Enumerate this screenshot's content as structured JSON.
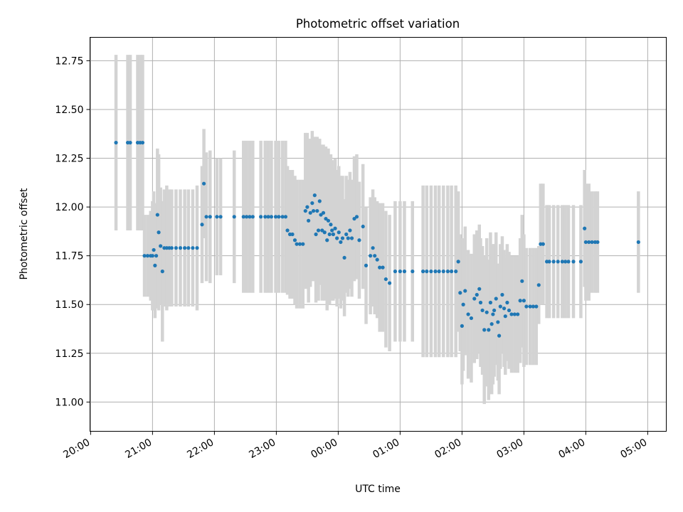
{
  "chart_data": {
    "type": "scatter",
    "title": "Photometric offset variation",
    "xlabel": "UTC time",
    "ylabel": "Photometric offset",
    "x_unit": "hours since 20:00 UTC",
    "xlim": [
      -0.01,
      9.3
    ],
    "ylim": [
      10.85,
      12.87
    ],
    "grid": true,
    "x_ticks": [
      {
        "value": 0,
        "label": "20:00"
      },
      {
        "value": 1,
        "label": "21:00"
      },
      {
        "value": 2,
        "label": "22:00"
      },
      {
        "value": 3,
        "label": "23:00"
      },
      {
        "value": 4,
        "label": "00:00"
      },
      {
        "value": 5,
        "label": "01:00"
      },
      {
        "value": 6,
        "label": "02:00"
      },
      {
        "value": 7,
        "label": "03:00"
      },
      {
        "value": 8,
        "label": "04:00"
      },
      {
        "value": 9,
        "label": "05:00"
      }
    ],
    "y_ticks": [
      {
        "value": 11.0,
        "label": "11.00"
      },
      {
        "value": 11.25,
        "label": "11.25"
      },
      {
        "value": 11.5,
        "label": "11.50"
      },
      {
        "value": 11.75,
        "label": "11.75"
      },
      {
        "value": 12.0,
        "label": "12.00"
      },
      {
        "value": 12.25,
        "label": "12.25"
      },
      {
        "value": 12.5,
        "label": "12.50"
      },
      {
        "value": 12.75,
        "label": "12.75"
      }
    ],
    "errorbar_color": "#d3d3d3",
    "point_color": "#1f77b4",
    "series": [
      {
        "name": "photometric offset",
        "points": [
          {
            "x": 0.41,
            "y": 12.33,
            "err": 0.45
          },
          {
            "x": 0.6,
            "y": 12.33,
            "err": 0.45
          },
          {
            "x": 0.64,
            "y": 12.33,
            "err": 0.45
          },
          {
            "x": 0.76,
            "y": 12.33,
            "err": 0.45
          },
          {
            "x": 0.8,
            "y": 12.33,
            "err": 0.45
          },
          {
            "x": 0.84,
            "y": 12.33,
            "err": 0.45
          },
          {
            "x": 0.87,
            "y": 11.75,
            "err": 0.21
          },
          {
            "x": 0.92,
            "y": 11.75,
            "err": 0.21
          },
          {
            "x": 0.97,
            "y": 11.75,
            "err": 0.23
          },
          {
            "x": 1.0,
            "y": 11.75,
            "err": 0.28
          },
          {
            "x": 1.02,
            "y": 11.78,
            "err": 0.3
          },
          {
            "x": 1.04,
            "y": 11.7,
            "err": 0.27
          },
          {
            "x": 1.06,
            "y": 11.75,
            "err": 0.27
          },
          {
            "x": 1.08,
            "y": 11.96,
            "err": 0.34
          },
          {
            "x": 1.1,
            "y": 11.87,
            "err": 0.4
          },
          {
            "x": 1.13,
            "y": 11.8,
            "err": 0.3
          },
          {
            "x": 1.16,
            "y": 11.67,
            "err": 0.36
          },
          {
            "x": 1.19,
            "y": 11.79,
            "err": 0.3
          },
          {
            "x": 1.23,
            "y": 11.79,
            "err": 0.32
          },
          {
            "x": 1.27,
            "y": 11.79,
            "err": 0.3
          },
          {
            "x": 1.31,
            "y": 11.79,
            "err": 0.3
          },
          {
            "x": 1.38,
            "y": 11.79,
            "err": 0.3
          },
          {
            "x": 1.45,
            "y": 11.79,
            "err": 0.3
          },
          {
            "x": 1.52,
            "y": 11.79,
            "err": 0.3
          },
          {
            "x": 1.58,
            "y": 11.79,
            "err": 0.3
          },
          {
            "x": 1.65,
            "y": 11.79,
            "err": 0.3
          },
          {
            "x": 1.72,
            "y": 11.79,
            "err": 0.32
          },
          {
            "x": 1.8,
            "y": 11.91,
            "err": 0.3
          },
          {
            "x": 1.83,
            "y": 12.12,
            "err": 0.28
          },
          {
            "x": 1.87,
            "y": 11.95,
            "err": 0.33
          },
          {
            "x": 1.93,
            "y": 11.95,
            "err": 0.34
          },
          {
            "x": 2.04,
            "y": 11.95,
            "err": 0.3
          },
          {
            "x": 2.1,
            "y": 11.95,
            "err": 0.3
          },
          {
            "x": 2.32,
            "y": 11.95,
            "err": 0.34
          },
          {
            "x": 2.47,
            "y": 11.95,
            "err": 0.39
          },
          {
            "x": 2.52,
            "y": 11.95,
            "err": 0.39
          },
          {
            "x": 2.57,
            "y": 11.95,
            "err": 0.39
          },
          {
            "x": 2.62,
            "y": 11.95,
            "err": 0.39
          },
          {
            "x": 2.75,
            "y": 11.95,
            "err": 0.39
          },
          {
            "x": 2.82,
            "y": 11.95,
            "err": 0.39
          },
          {
            "x": 2.87,
            "y": 11.95,
            "err": 0.39
          },
          {
            "x": 2.92,
            "y": 11.95,
            "err": 0.39
          },
          {
            "x": 2.99,
            "y": 11.95,
            "err": 0.39
          },
          {
            "x": 3.04,
            "y": 11.95,
            "err": 0.39
          },
          {
            "x": 3.1,
            "y": 11.95,
            "err": 0.39
          },
          {
            "x": 3.15,
            "y": 11.95,
            "err": 0.39
          },
          {
            "x": 3.18,
            "y": 11.88,
            "err": 0.33
          },
          {
            "x": 3.22,
            "y": 11.86,
            "err": 0.33
          },
          {
            "x": 3.26,
            "y": 11.86,
            "err": 0.33
          },
          {
            "x": 3.3,
            "y": 11.83,
            "err": 0.33
          },
          {
            "x": 3.33,
            "y": 11.81,
            "err": 0.33
          },
          {
            "x": 3.38,
            "y": 11.81,
            "err": 0.33
          },
          {
            "x": 3.43,
            "y": 11.81,
            "err": 0.33
          },
          {
            "x": 3.47,
            "y": 11.98,
            "err": 0.4
          },
          {
            "x": 3.5,
            "y": 12.0,
            "err": 0.38
          },
          {
            "x": 3.52,
            "y": 11.93,
            "err": 0.42
          },
          {
            "x": 3.55,
            "y": 11.97,
            "err": 0.38
          },
          {
            "x": 3.58,
            "y": 12.02,
            "err": 0.37
          },
          {
            "x": 3.6,
            "y": 11.98,
            "err": 0.36
          },
          {
            "x": 3.62,
            "y": 12.06,
            "err": 0.3
          },
          {
            "x": 3.64,
            "y": 11.86,
            "err": 0.35
          },
          {
            "x": 3.66,
            "y": 11.98,
            "err": 0.38
          },
          {
            "x": 3.68,
            "y": 11.88,
            "err": 0.36
          },
          {
            "x": 3.7,
            "y": 12.03,
            "err": 0.32
          },
          {
            "x": 3.72,
            "y": 11.96,
            "err": 0.36
          },
          {
            "x": 3.74,
            "y": 11.88,
            "err": 0.36
          },
          {
            "x": 3.76,
            "y": 11.97,
            "err": 0.35
          },
          {
            "x": 3.78,
            "y": 11.87,
            "err": 0.35
          },
          {
            "x": 3.8,
            "y": 11.94,
            "err": 0.37
          },
          {
            "x": 3.82,
            "y": 11.83,
            "err": 0.36
          },
          {
            "x": 3.84,
            "y": 11.93,
            "err": 0.37
          },
          {
            "x": 3.86,
            "y": 11.86,
            "err": 0.36
          },
          {
            "x": 3.88,
            "y": 11.91,
            "err": 0.36
          },
          {
            "x": 3.9,
            "y": 11.88,
            "err": 0.36
          },
          {
            "x": 3.92,
            "y": 11.86,
            "err": 0.34
          },
          {
            "x": 3.95,
            "y": 11.89,
            "err": 0.36
          },
          {
            "x": 3.98,
            "y": 11.84,
            "err": 0.35
          },
          {
            "x": 4.01,
            "y": 11.87,
            "err": 0.34
          },
          {
            "x": 4.04,
            "y": 11.82,
            "err": 0.34
          },
          {
            "x": 4.07,
            "y": 11.84,
            "err": 0.32
          },
          {
            "x": 4.1,
            "y": 11.74,
            "err": 0.3
          },
          {
            "x": 4.13,
            "y": 11.86,
            "err": 0.3
          },
          {
            "x": 4.16,
            "y": 11.84,
            "err": 0.3
          },
          {
            "x": 4.19,
            "y": 11.88,
            "err": 0.3
          },
          {
            "x": 4.22,
            "y": 11.84,
            "err": 0.3
          },
          {
            "x": 4.26,
            "y": 11.94,
            "err": 0.32
          },
          {
            "x": 4.3,
            "y": 11.95,
            "err": 0.32
          },
          {
            "x": 4.34,
            "y": 11.83,
            "err": 0.3
          },
          {
            "x": 4.4,
            "y": 11.9,
            "err": 0.32
          },
          {
            "x": 4.45,
            "y": 11.7,
            "err": 0.3
          },
          {
            "x": 4.52,
            "y": 11.75,
            "err": 0.3
          },
          {
            "x": 4.56,
            "y": 11.79,
            "err": 0.3
          },
          {
            "x": 4.59,
            "y": 11.75,
            "err": 0.3
          },
          {
            "x": 4.63,
            "y": 11.73,
            "err": 0.3
          },
          {
            "x": 4.67,
            "y": 11.69,
            "err": 0.33
          },
          {
            "x": 4.72,
            "y": 11.69,
            "err": 0.33
          },
          {
            "x": 4.77,
            "y": 11.63,
            "err": 0.35
          },
          {
            "x": 4.83,
            "y": 11.61,
            "err": 0.35
          },
          {
            "x": 4.92,
            "y": 11.67,
            "err": 0.36
          },
          {
            "x": 5.0,
            "y": 11.67,
            "err": 0.36
          },
          {
            "x": 5.07,
            "y": 11.67,
            "err": 0.36
          },
          {
            "x": 5.2,
            "y": 11.67,
            "err": 0.36
          },
          {
            "x": 5.37,
            "y": 11.67,
            "err": 0.44
          },
          {
            "x": 5.43,
            "y": 11.67,
            "err": 0.44
          },
          {
            "x": 5.5,
            "y": 11.67,
            "err": 0.44
          },
          {
            "x": 5.57,
            "y": 11.67,
            "err": 0.44
          },
          {
            "x": 5.63,
            "y": 11.67,
            "err": 0.44
          },
          {
            "x": 5.7,
            "y": 11.67,
            "err": 0.44
          },
          {
            "x": 5.77,
            "y": 11.67,
            "err": 0.44
          },
          {
            "x": 5.83,
            "y": 11.67,
            "err": 0.44
          },
          {
            "x": 5.9,
            "y": 11.67,
            "err": 0.44
          },
          {
            "x": 5.94,
            "y": 11.72,
            "err": 0.36
          },
          {
            "x": 5.97,
            "y": 11.56,
            "err": 0.3
          },
          {
            "x": 6.0,
            "y": 11.39,
            "err": 0.3
          },
          {
            "x": 6.02,
            "y": 11.5,
            "err": 0.34
          },
          {
            "x": 6.05,
            "y": 11.57,
            "err": 0.33
          },
          {
            "x": 6.1,
            "y": 11.45,
            "err": 0.33
          },
          {
            "x": 6.15,
            "y": 11.43,
            "err": 0.33
          },
          {
            "x": 6.2,
            "y": 11.53,
            "err": 0.33
          },
          {
            "x": 6.24,
            "y": 11.55,
            "err": 0.33
          },
          {
            "x": 6.28,
            "y": 11.58,
            "err": 0.33
          },
          {
            "x": 6.3,
            "y": 11.51,
            "err": 0.33
          },
          {
            "x": 6.33,
            "y": 11.47,
            "err": 0.33
          },
          {
            "x": 6.36,
            "y": 11.37,
            "err": 0.38
          },
          {
            "x": 6.4,
            "y": 11.46,
            "err": 0.38
          },
          {
            "x": 6.43,
            "y": 11.37,
            "err": 0.36
          },
          {
            "x": 6.46,
            "y": 11.51,
            "err": 0.36
          },
          {
            "x": 6.48,
            "y": 11.4,
            "err": 0.36
          },
          {
            "x": 6.5,
            "y": 11.45,
            "err": 0.36
          },
          {
            "x": 6.52,
            "y": 11.47,
            "err": 0.34
          },
          {
            "x": 6.55,
            "y": 11.53,
            "err": 0.34
          },
          {
            "x": 6.58,
            "y": 11.41,
            "err": 0.3
          },
          {
            "x": 6.6,
            "y": 11.34,
            "err": 0.3
          },
          {
            "x": 6.62,
            "y": 11.49,
            "err": 0.32
          },
          {
            "x": 6.65,
            "y": 11.55,
            "err": 0.3
          },
          {
            "x": 6.68,
            "y": 11.48,
            "err": 0.3
          },
          {
            "x": 6.7,
            "y": 11.44,
            "err": 0.3
          },
          {
            "x": 6.73,
            "y": 11.51,
            "err": 0.3
          },
          {
            "x": 6.76,
            "y": 11.47,
            "err": 0.3
          },
          {
            "x": 6.8,
            "y": 11.45,
            "err": 0.3
          },
          {
            "x": 6.85,
            "y": 11.45,
            "err": 0.3
          },
          {
            "x": 6.9,
            "y": 11.45,
            "err": 0.3
          },
          {
            "x": 6.94,
            "y": 11.52,
            "err": 0.32
          },
          {
            "x": 6.97,
            "y": 11.62,
            "err": 0.34
          },
          {
            "x": 7.0,
            "y": 11.52,
            "err": 0.34
          },
          {
            "x": 7.04,
            "y": 11.49,
            "err": 0.3
          },
          {
            "x": 7.1,
            "y": 11.49,
            "err": 0.3
          },
          {
            "x": 7.15,
            "y": 11.49,
            "err": 0.3
          },
          {
            "x": 7.2,
            "y": 11.49,
            "err": 0.3
          },
          {
            "x": 7.24,
            "y": 11.6,
            "err": 0.2
          },
          {
            "x": 7.27,
            "y": 11.81,
            "err": 0.31
          },
          {
            "x": 7.31,
            "y": 11.81,
            "err": 0.31
          },
          {
            "x": 7.37,
            "y": 11.72,
            "err": 0.29
          },
          {
            "x": 7.41,
            "y": 11.72,
            "err": 0.29
          },
          {
            "x": 7.48,
            "y": 11.72,
            "err": 0.29
          },
          {
            "x": 7.55,
            "y": 11.72,
            "err": 0.29
          },
          {
            "x": 7.62,
            "y": 11.72,
            "err": 0.29
          },
          {
            "x": 7.67,
            "y": 11.72,
            "err": 0.29
          },
          {
            "x": 7.72,
            "y": 11.72,
            "err": 0.29
          },
          {
            "x": 7.8,
            "y": 11.72,
            "err": 0.29
          },
          {
            "x": 7.92,
            "y": 11.72,
            "err": 0.29
          },
          {
            "x": 7.98,
            "y": 11.89,
            "err": 0.3
          },
          {
            "x": 8.0,
            "y": 11.82,
            "err": 0.3
          },
          {
            "x": 8.05,
            "y": 11.82,
            "err": 0.3
          },
          {
            "x": 8.1,
            "y": 11.82,
            "err": 0.26
          },
          {
            "x": 8.15,
            "y": 11.82,
            "err": 0.26
          },
          {
            "x": 8.19,
            "y": 11.82,
            "err": 0.26
          },
          {
            "x": 8.85,
            "y": 11.82,
            "err": 0.26
          }
        ]
      }
    ]
  }
}
